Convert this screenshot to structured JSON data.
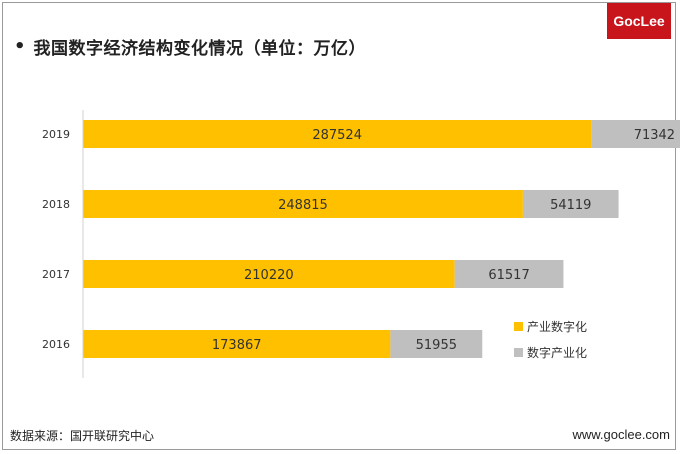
{
  "header": {
    "bullet": "•",
    "title": "我国数字经济结构变化情况（单位：万亿）",
    "logo_text": "GocLee"
  },
  "footer": {
    "source": "数据来源：国开联研究中心",
    "website": "www.goclee.com"
  },
  "colors": {
    "series_1": "#ffc000",
    "series_2": "#bfbfbf",
    "logo_bg": "#c8141b"
  },
  "chart_data": {
    "type": "bar",
    "orientation": "horizontal",
    "stacked": true,
    "categories": [
      "2019",
      "2018",
      "2017",
      "2016"
    ],
    "series": [
      {
        "name": "产业数字化",
        "values": [
          287524,
          248815,
          210220,
          173867
        ],
        "color": "#ffc000"
      },
      {
        "name": "数字产业化",
        "values": [
          71342,
          54119,
          61517,
          51955
        ],
        "color": "#bfbfbf"
      }
    ],
    "xlim": [
      0,
      400000
    ],
    "grid": false,
    "legend_position": "bottom-right",
    "data_labels": true
  }
}
